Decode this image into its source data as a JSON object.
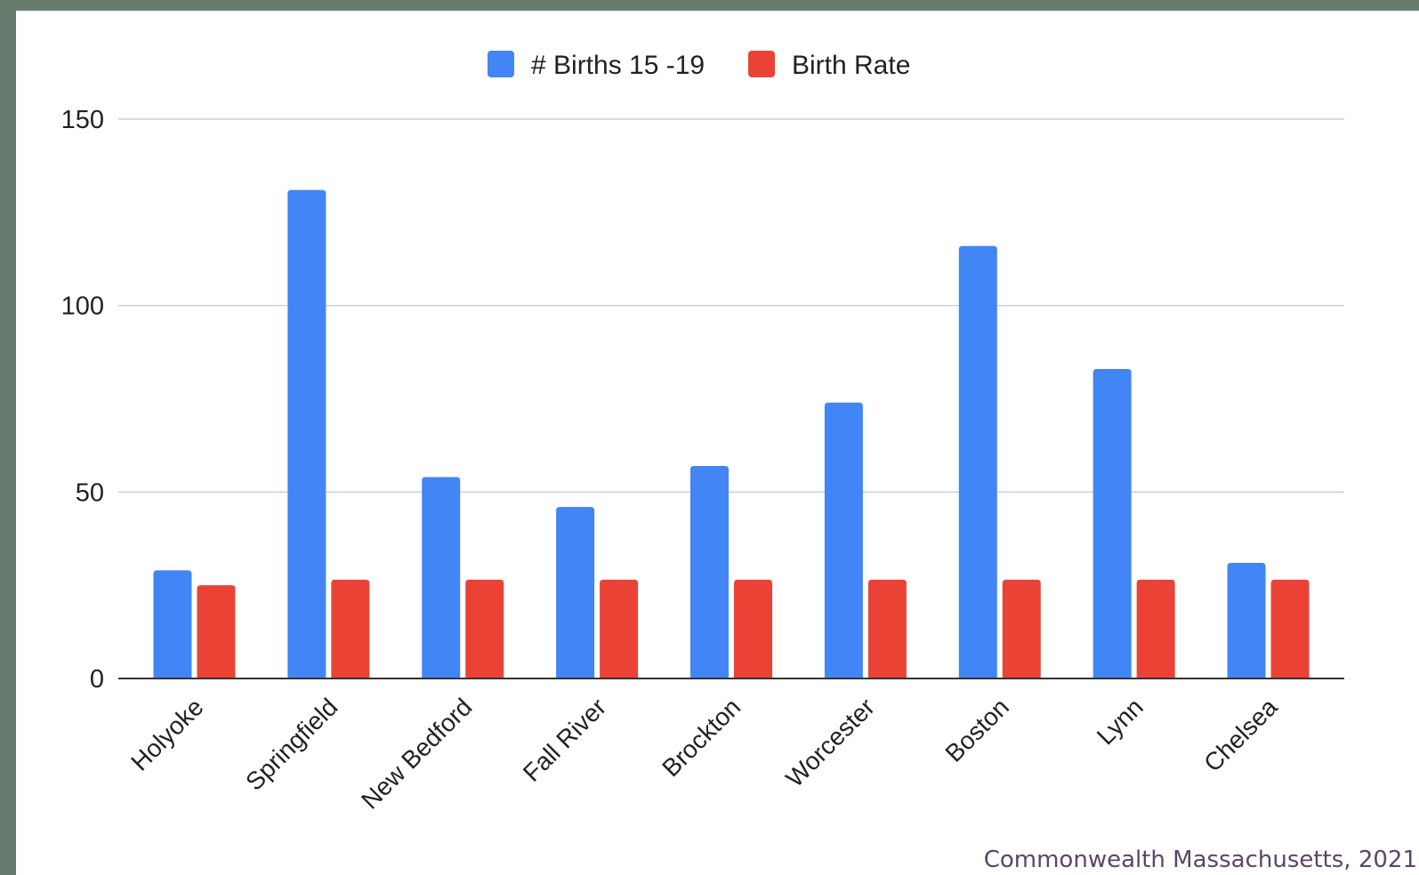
{
  "chart_data": {
    "type": "bar",
    "categories": [
      "Holyoke",
      "Springfield",
      "New Bedford",
      "Fall River",
      "Brockton",
      "Worcester",
      "Boston",
      "Lynn",
      "Chelsea"
    ],
    "series": [
      {
        "name": "# Births 15 -19",
        "color": "#4285f4",
        "values": [
          29,
          131,
          54,
          46,
          57,
          74,
          116,
          83,
          31
        ]
      },
      {
        "name": "Birth Rate",
        "color": "#ea4335",
        "values": [
          25,
          26.5,
          26.5,
          26.5,
          26.5,
          26.5,
          26.5,
          26.5,
          26.5
        ]
      }
    ],
    "ylim": [
      0,
      150
    ],
    "yticks": [
      "0",
      "50",
      "100",
      "150"
    ],
    "grid": true,
    "legend_position": "top-center",
    "xlabel": "",
    "ylabel": "",
    "title": ""
  },
  "source_note": "Commonwealth Massachusetts, 2021"
}
